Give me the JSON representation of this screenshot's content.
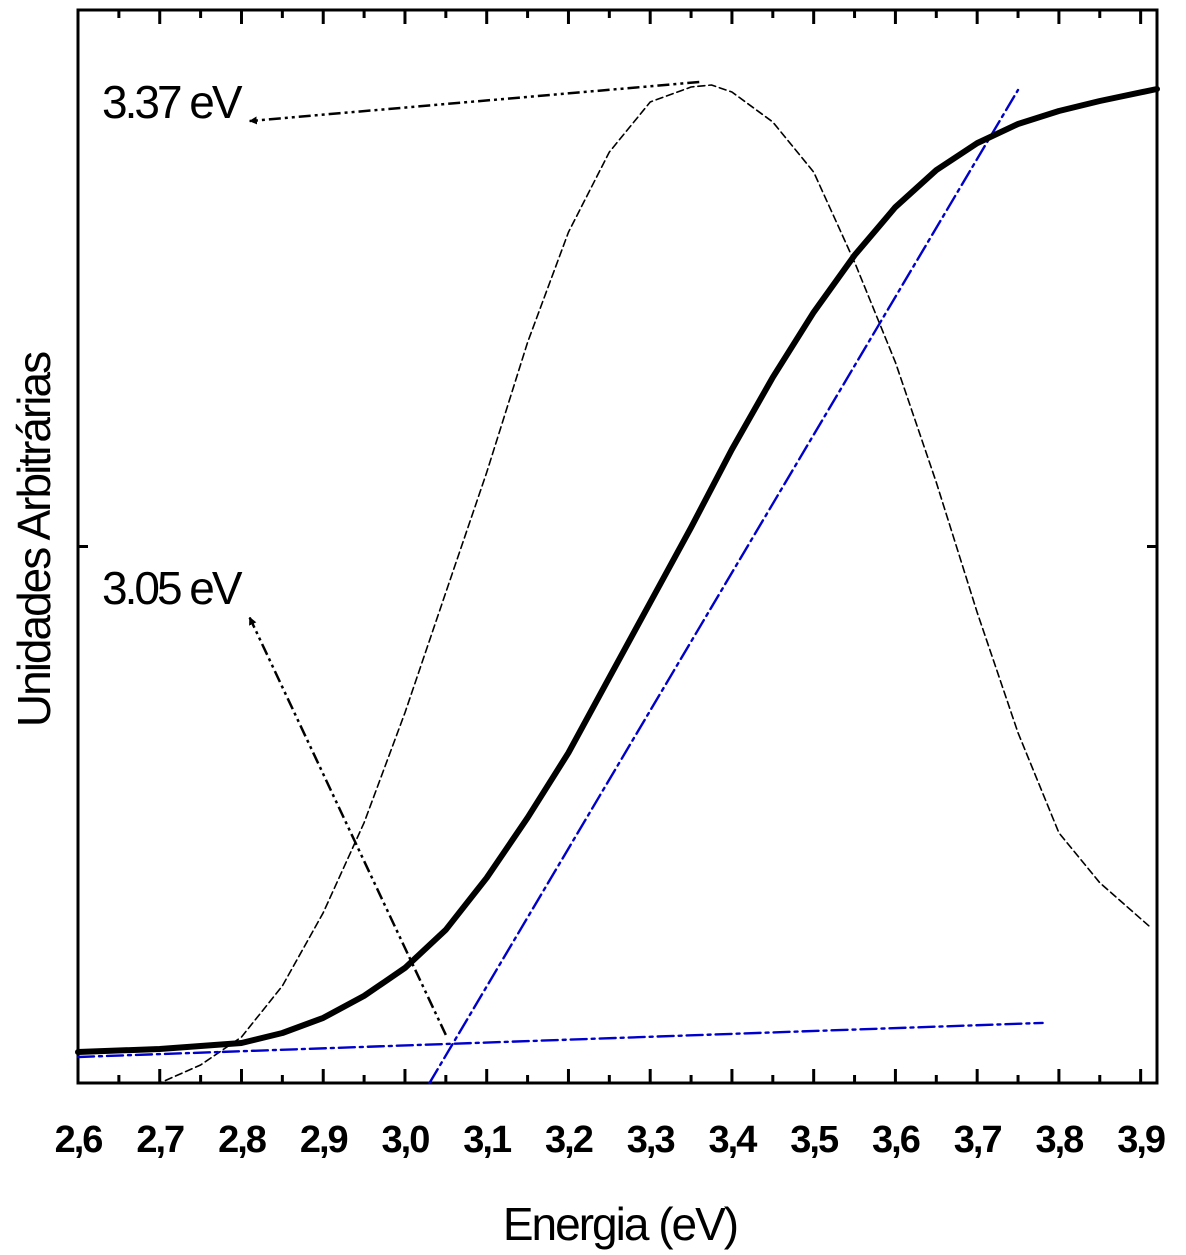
{
  "chart_data": {
    "type": "line",
    "xlabel": "Energia (eV)",
    "ylabel": "Unidades Arbitrárias",
    "xlim": [
      2.6,
      3.92
    ],
    "ylim": [
      0,
      1
    ],
    "x_ticks": [
      2.6,
      2.7,
      2.8,
      2.9,
      3.0,
      3.1,
      3.2,
      3.3,
      3.4,
      3.5,
      3.6,
      3.7,
      3.8,
      3.9
    ],
    "x_tick_labels": [
      "2,6",
      "2,7",
      "2,8",
      "2,9",
      "3,0",
      "3,1",
      "3,2",
      "3,3",
      "3,4",
      "3,5",
      "3,6",
      "3,7",
      "3,8",
      "3,9"
    ],
    "y_ticks_labeled": false,
    "grid": false,
    "series": [
      {
        "style": "solid-thick",
        "color": "#000000",
        "x": [
          2.6,
          2.7,
          2.8,
          2.85,
          2.9,
          2.95,
          3.0,
          3.05,
          3.1,
          3.15,
          3.2,
          3.25,
          3.3,
          3.35,
          3.4,
          3.45,
          3.5,
          3.55,
          3.6,
          3.65,
          3.7,
          3.75,
          3.8,
          3.85,
          3.92
        ],
        "y": [
          0.031,
          0.034,
          0.04,
          0.05,
          0.065,
          0.087,
          0.115,
          0.153,
          0.205,
          0.265,
          0.33,
          0.405,
          0.48,
          0.555,
          0.633,
          0.705,
          0.77,
          0.827,
          0.875,
          0.912,
          0.939,
          0.958,
          0.971,
          0.981,
          0.993
        ]
      },
      {
        "style": "dashed-thin",
        "color": "#000000",
        "x": [
          2.6,
          2.7,
          2.75,
          2.8,
          2.85,
          2.9,
          2.95,
          3.0,
          3.05,
          3.1,
          3.15,
          3.2,
          3.25,
          3.3,
          3.35,
          3.375,
          3.4,
          3.45,
          3.5,
          3.55,
          3.6,
          3.65,
          3.7,
          3.75,
          3.8,
          3.85,
          3.91
        ],
        "y": [
          0.0,
          0.0,
          0.018,
          0.046,
          0.097,
          0.17,
          0.26,
          0.37,
          0.49,
          0.61,
          0.74,
          0.85,
          0.93,
          0.98,
          0.995,
          0.997,
          0.99,
          0.96,
          0.91,
          0.82,
          0.72,
          0.6,
          0.47,
          0.35,
          0.25,
          0.2,
          0.157
        ]
      },
      {
        "style": "dash-dot",
        "color": "#0000cc",
        "x": [
          2.6,
          3.78
        ],
        "y": [
          0.026,
          0.06
        ]
      },
      {
        "style": "dash-dot",
        "color": "#0000cc",
        "x": [
          3.03,
          3.75
        ],
        "y": [
          0.0,
          0.992
        ]
      }
    ],
    "annotations": [
      {
        "text": "3.37 eV",
        "arrow_from": [
          3.36,
          1.0
        ],
        "arrow_to": [
          2.81,
          0.961
        ]
      },
      {
        "text": "3.05 eV",
        "arrow_from": [
          3.05,
          0.048
        ],
        "arrow_to": [
          2.81,
          0.465
        ]
      }
    ]
  }
}
